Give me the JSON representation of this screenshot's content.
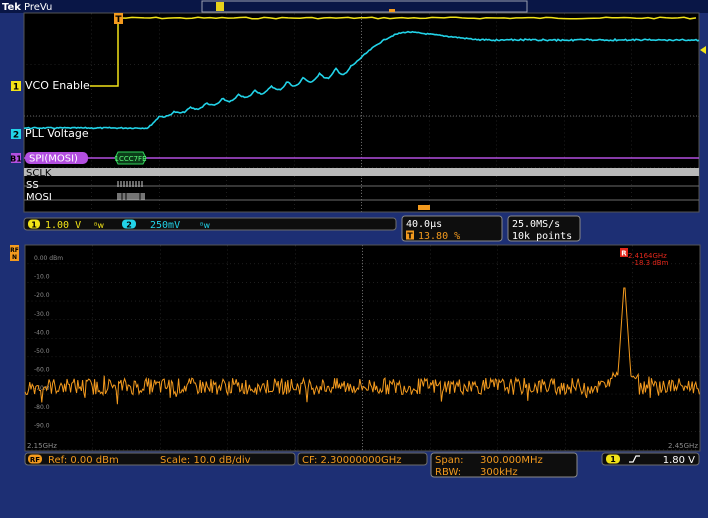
{
  "header": {
    "brand": "Tek",
    "mode": "PreVu"
  },
  "time_domain": {
    "ch1_label": "VCO Enable",
    "ch2_label": "PLL Voltage",
    "bus_label": "SPI(MOSI)",
    "bus_value": "1CCC7FE",
    "digital_labels": [
      "SCLK",
      "SS",
      "MOSI"
    ],
    "ch1_scale": "1.00 V",
    "ch2_scale": "250mV",
    "bw_symbol": "ᴮw",
    "timebase": "40.0µs",
    "trigger_position": "13.80 %",
    "sample_rate": "25.0MS/s",
    "record_length": "10k points"
  },
  "rf": {
    "y_tick_labels": [
      "0.00 dBm",
      "-10.0",
      "-20.0",
      "-30.0",
      "-40.0",
      "-50.0",
      "-60.0",
      "-70.0",
      "-80.0",
      "-90.0"
    ],
    "start_freq": "2.15GHz",
    "stop_freq": "2.45GHz",
    "marker_freq": "2.4164GHz",
    "marker_level": "-18.3 dBm",
    "ref_level": "Ref: 0.00 dBm",
    "scale": "Scale: 10.0 dB/div",
    "center_freq": "CF: 2.30000000GHz",
    "span_label": "Span:",
    "span_value": "300.000MHz",
    "rbw_label": "RBW:",
    "rbw_value": "300kHz",
    "trigger_level": "1.80 V"
  },
  "colors": {
    "ch1": "#f2e318",
    "ch2": "#22d3e8",
    "bus": "#b34fe0",
    "rf": "#f39a1e",
    "grid": "#3c3c3c",
    "background": "#1d2f74"
  }
}
